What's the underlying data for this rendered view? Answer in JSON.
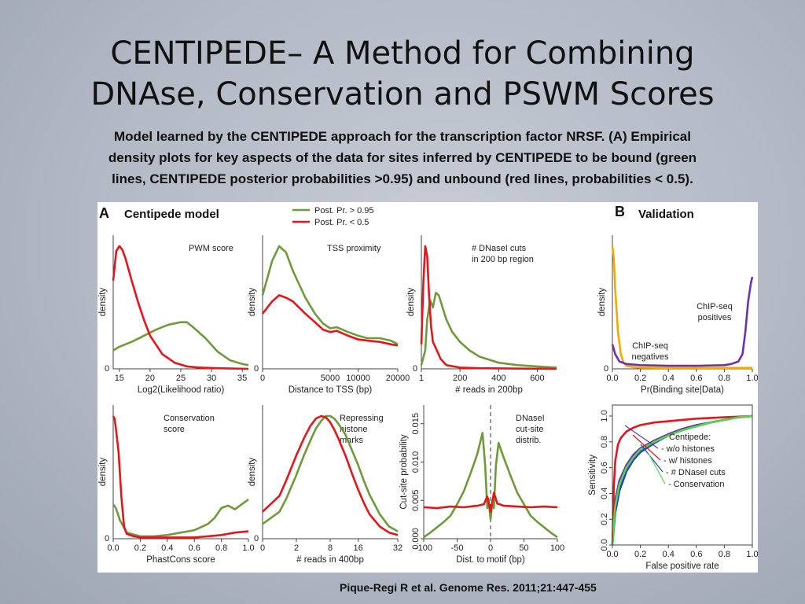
{
  "slide": {
    "title_line1": "CENTIPEDE– A Method for Combining",
    "title_line2": "DNAse, Conservation and PSWM Scores",
    "caption_line1": "Model learned by the CENTIPEDE approach for the transcription factor NRSF. (A) Empirical",
    "caption_line2": "density plots for key aspects of the data for sites inferred by CENTIPEDE to be bound (green",
    "caption_line3": "lines, CENTIPEDE posterior probabilities >0.95) and unbound (red lines, probabilities < 0.5).",
    "citation": "Pique-Regi R et al. Genome Res. 2011;21:447-455"
  },
  "figure": {
    "panel_a_letter": "A",
    "panel_a_title": "Centipede model",
    "panel_b_letter": "B",
    "panel_b_title": "Validation",
    "legend": [
      "Post. Pr. > 0.95",
      "Post. Pr. < 0.5"
    ]
  },
  "colors": {
    "green": "#6e9a3c",
    "red": "#e3161b",
    "purple": "#6b33a8",
    "orange": "#f2a900",
    "blue": "#1f3fcf",
    "lightgreen": "#55d34a",
    "darkred": "#e3161b"
  },
  "chart_data": [
    {
      "id": "pwm",
      "type": "line",
      "note": "PWM score",
      "xlabel": "Log2(Likelihood ratio)",
      "ylabel": "density",
      "xticks": [
        "15",
        "20",
        "25",
        "30",
        "35"
      ],
      "xlim": [
        14,
        36
      ],
      "ylim": [
        0,
        1
      ],
      "series": [
        {
          "name": "Post. Pr. > 0.95",
          "color": "green",
          "x": [
            14,
            15,
            17,
            19,
            21,
            23,
            25,
            26,
            27,
            29,
            31,
            33,
            35,
            36
          ],
          "y": [
            0.15,
            0.18,
            0.22,
            0.27,
            0.32,
            0.36,
            0.38,
            0.38,
            0.34,
            0.25,
            0.14,
            0.07,
            0.04,
            0.03
          ]
        },
        {
          "name": "Post. Pr. < 0.5",
          "color": "red",
          "x": [
            14,
            14.5,
            15,
            15.5,
            16,
            17,
            18,
            19,
            20,
            22,
            24,
            26,
            28,
            31,
            36
          ],
          "y": [
            0.72,
            0.96,
            1.0,
            0.97,
            0.9,
            0.72,
            0.55,
            0.4,
            0.27,
            0.12,
            0.05,
            0.02,
            0.01,
            0.005,
            0
          ]
        }
      ]
    },
    {
      "id": "tss",
      "type": "line",
      "note": "TSS proximity",
      "xlabel": "Distance to TSS (bp)",
      "ylabel": "density",
      "xticks": [
        "0",
        "5000",
        "10000",
        "20000"
      ],
      "xlim": [
        0,
        20000
      ],
      "ylim": [
        0,
        1
      ],
      "xscale": "sqrt",
      "series": [
        {
          "name": "Post. Pr. > 0.95",
          "color": "green",
          "x": [
            0,
            100,
            300,
            600,
            1000,
            2000,
            3000,
            4000,
            5000,
            6000,
            8000,
            10000,
            12000,
            15000,
            18000,
            20000
          ],
          "y": [
            0.6,
            0.88,
            1.0,
            0.95,
            0.8,
            0.58,
            0.45,
            0.37,
            0.33,
            0.34,
            0.3,
            0.27,
            0.25,
            0.25,
            0.23,
            0.2
          ]
        },
        {
          "name": "Post. Pr. < 0.5",
          "color": "red",
          "x": [
            0,
            100,
            300,
            600,
            1000,
            2000,
            3000,
            4000,
            5000,
            6000,
            8000,
            10000,
            12000,
            15000,
            18000,
            20000
          ],
          "y": [
            0.45,
            0.55,
            0.6,
            0.58,
            0.55,
            0.45,
            0.38,
            0.32,
            0.3,
            0.31,
            0.27,
            0.24,
            0.23,
            0.22,
            0.2,
            0.19
          ]
        }
      ]
    },
    {
      "id": "dnase",
      "type": "line",
      "note": "# DNaseI cuts in 200 bp region",
      "xlabel": "# reads in 200bp",
      "ylabel": "density",
      "xticks": [
        "1",
        "200",
        "400",
        "600"
      ],
      "xlim": [
        0,
        700
      ],
      "ylim": [
        0,
        1
      ],
      "series": [
        {
          "name": "Post. Pr. > 0.95",
          "color": "green",
          "x": [
            0,
            20,
            30,
            45,
            60,
            75,
            90,
            110,
            130,
            160,
            200,
            250,
            300,
            400,
            500,
            600,
            700
          ],
          "y": [
            0.03,
            0.15,
            0.4,
            0.56,
            0.5,
            0.62,
            0.6,
            0.5,
            0.4,
            0.3,
            0.22,
            0.15,
            0.1,
            0.05,
            0.03,
            0.02,
            0.01
          ]
        },
        {
          "name": "Post. Pr. < 0.5",
          "color": "red",
          "x": [
            0,
            10,
            20,
            30,
            40,
            50,
            60,
            80,
            100,
            130,
            200,
            300,
            700
          ],
          "y": [
            0.2,
            0.7,
            1.0,
            0.92,
            0.6,
            0.35,
            0.22,
            0.15,
            0.08,
            0.03,
            0.01,
            0.005,
            0
          ]
        }
      ]
    },
    {
      "id": "cons",
      "type": "line",
      "note": "Conservation score",
      "xlabel": "PhastCons score",
      "ylabel": "density",
      "xticks": [
        "0.0",
        "0.2",
        "0.4",
        "0.6",
        "0.8",
        "1.0"
      ],
      "xlim": [
        0,
        1
      ],
      "ylim": [
        0,
        1
      ],
      "series": [
        {
          "name": "Post. Pr. > 0.95",
          "color": "green",
          "x": [
            0,
            0.02,
            0.05,
            0.1,
            0.2,
            0.3,
            0.4,
            0.5,
            0.6,
            0.7,
            0.75,
            0.8,
            0.85,
            0.9,
            0.95,
            1.0
          ],
          "y": [
            0.28,
            0.25,
            0.15,
            0.05,
            0.02,
            0.02,
            0.03,
            0.05,
            0.07,
            0.12,
            0.17,
            0.25,
            0.27,
            0.24,
            0.28,
            0.32
          ]
        },
        {
          "name": "Post. Pr. < 0.5",
          "color": "red",
          "x": [
            0,
            0.01,
            0.02,
            0.04,
            0.06,
            0.08,
            0.1,
            0.15,
            0.2,
            0.3,
            0.4,
            0.5,
            0.6,
            0.7,
            0.8,
            0.9,
            1.0
          ],
          "y": [
            1.0,
            0.98,
            0.9,
            0.7,
            0.35,
            0.1,
            0.04,
            0.02,
            0.01,
            0.01,
            0.01,
            0.01,
            0.01,
            0.02,
            0.03,
            0.05,
            0.06
          ]
        }
      ]
    },
    {
      "id": "hist",
      "type": "line",
      "note": "Repressing histone marks",
      "xlabel": "# reads in 400bp",
      "ylabel": "density",
      "xticks": [
        "0",
        "2",
        "8",
        "16",
        "32"
      ],
      "xlim": [
        0,
        32
      ],
      "ylim": [
        0,
        1
      ],
      "xscale": "sqrt",
      "series": [
        {
          "name": "Post. Pr. > 0.95",
          "color": "green",
          "x": [
            0,
            0.5,
            1,
            2,
            3,
            4,
            5,
            6,
            7,
            8,
            9,
            10,
            12,
            14,
            16,
            18,
            20,
            24,
            28,
            32
          ],
          "y": [
            0.12,
            0.22,
            0.33,
            0.52,
            0.68,
            0.8,
            0.9,
            0.96,
            1.0,
            1.0,
            0.98,
            0.94,
            0.85,
            0.72,
            0.6,
            0.47,
            0.36,
            0.2,
            0.1,
            0.06
          ]
        },
        {
          "name": "Post. Pr. < 0.5",
          "color": "red",
          "x": [
            0,
            0.5,
            1,
            2,
            3,
            4,
            5,
            6,
            7,
            8,
            9,
            10,
            12,
            14,
            16,
            18,
            20,
            24,
            28,
            32
          ],
          "y": [
            0.22,
            0.35,
            0.48,
            0.68,
            0.82,
            0.92,
            0.98,
            1.0,
            0.99,
            0.95,
            0.89,
            0.82,
            0.68,
            0.53,
            0.4,
            0.29,
            0.2,
            0.1,
            0.05,
            0.03
          ]
        }
      ]
    },
    {
      "id": "cut",
      "type": "line",
      "note": "DNaseI cut-site distrib.",
      "xlabel": "Dist. to motif (bp)",
      "ylabel": "Cut-site probability",
      "xticks": [
        "-100",
        "-50",
        "0",
        "50",
        "100"
      ],
      "xlim": [
        -100,
        100
      ],
      "ylim": [
        0,
        0.016
      ],
      "yticks": [
        "0.000",
        "0.005",
        "0.010",
        "0.015"
      ],
      "vline": 0,
      "series": [
        {
          "name": "Post. Pr. > 0.95",
          "color": "green",
          "x": [
            -100,
            -90,
            -80,
            -70,
            -60,
            -50,
            -40,
            -30,
            -20,
            -12,
            -8,
            -5,
            -3,
            0,
            3,
            5,
            8,
            12,
            20,
            30,
            40,
            50,
            60,
            70,
            80,
            90,
            100
          ],
          "y": [
            0.0002,
            0.0008,
            0.0015,
            0.0022,
            0.003,
            0.0045,
            0.0062,
            0.0085,
            0.011,
            0.0138,
            0.0095,
            0.004,
            0.0052,
            0.0025,
            0.005,
            0.004,
            0.0095,
            0.0125,
            0.0105,
            0.0082,
            0.006,
            0.0045,
            0.003,
            0.0022,
            0.0015,
            0.0008,
            0.0002
          ]
        },
        {
          "name": "Post. Pr. < 0.5",
          "color": "red",
          "x": [
            -100,
            -80,
            -60,
            -40,
            -20,
            -10,
            -5,
            0,
            5,
            10,
            20,
            40,
            60,
            80,
            100
          ],
          "y": [
            0.0041,
            0.004,
            0.0042,
            0.0041,
            0.0043,
            0.0045,
            0.0055,
            0.0035,
            0.006,
            0.0046,
            0.0043,
            0.0042,
            0.0041,
            0.0042,
            0.0041
          ]
        }
      ]
    },
    {
      "id": "valid_density",
      "type": "line",
      "xlabel": "Pr(Binding site|Data)",
      "ylabel": "density",
      "xticks": [
        "0.0",
        "0.2",
        "0.4",
        "0.6",
        "0.8",
        "1.0"
      ],
      "xlim": [
        0,
        1
      ],
      "ylim": [
        0,
        1
      ],
      "labels": {
        "positives": "ChIP-seq positives",
        "negatives": "ChIP-seq negatives"
      },
      "series": [
        {
          "name": "ChIP-seq negatives",
          "color": "orange",
          "x": [
            0,
            0.01,
            0.02,
            0.04,
            0.06,
            0.08,
            0.1,
            0.15,
            0.2,
            0.4,
            0.6,
            0.8,
            1.0
          ],
          "y": [
            1.0,
            0.9,
            0.65,
            0.3,
            0.12,
            0.05,
            0.025,
            0.015,
            0.01,
            0.008,
            0.008,
            0.008,
            0.008
          ]
        },
        {
          "name": "ChIP-seq positives",
          "color": "purple",
          "x": [
            0,
            0.02,
            0.05,
            0.1,
            0.2,
            0.4,
            0.6,
            0.8,
            0.85,
            0.9,
            0.93,
            0.95,
            0.97,
            0.99,
            1.0
          ],
          "y": [
            0.2,
            0.12,
            0.06,
            0.04,
            0.03,
            0.025,
            0.025,
            0.03,
            0.04,
            0.06,
            0.12,
            0.3,
            0.55,
            0.7,
            0.75
          ]
        }
      ]
    },
    {
      "id": "roc",
      "type": "line",
      "xlabel": "False positive rate",
      "ylabel": "Sensitivity",
      "xticks": [
        "0.0",
        "0.2",
        "0.4",
        "0.6",
        "0.8",
        "1.0"
      ],
      "yticks": [
        "0.0",
        "0.2",
        "0.4",
        "0.6",
        "0.8",
        "1.0"
      ],
      "xlim": [
        0,
        1
      ],
      "ylim": [
        0,
        1
      ],
      "legend_title": "Centipede:",
      "series": [
        {
          "name": "- w/o histones",
          "color": "purple",
          "x": [
            0,
            0.02,
            0.05,
            0.1,
            0.15,
            0.2,
            0.3,
            0.4,
            0.5,
            0.6,
            0.7,
            0.8,
            0.9,
            1.0
          ],
          "y": [
            0,
            0.35,
            0.5,
            0.62,
            0.7,
            0.75,
            0.81,
            0.86,
            0.9,
            0.93,
            0.95,
            0.97,
            0.99,
            1.0
          ]
        },
        {
          "name": "- w/ histones",
          "color": "red",
          "x": [
            0,
            0.01,
            0.02,
            0.04,
            0.06,
            0.1,
            0.15,
            0.2,
            0.3,
            0.4,
            0.6,
            0.8,
            1.0
          ],
          "y": [
            0,
            0.45,
            0.65,
            0.78,
            0.83,
            0.88,
            0.91,
            0.93,
            0.95,
            0.96,
            0.98,
            0.99,
            1.0
          ]
        },
        {
          "name": "- # DNaseI cuts",
          "color": "blue",
          "x": [
            0,
            0.02,
            0.05,
            0.1,
            0.15,
            0.2,
            0.3,
            0.4,
            0.5,
            0.6,
            0.7,
            0.8,
            0.9,
            1.0
          ],
          "y": [
            0,
            0.25,
            0.42,
            0.57,
            0.66,
            0.72,
            0.79,
            0.85,
            0.89,
            0.92,
            0.95,
            0.97,
            0.99,
            1.0
          ]
        },
        {
          "name": "- Conservation",
          "color": "lightgreen",
          "x": [
            0,
            0.02,
            0.05,
            0.1,
            0.15,
            0.2,
            0.3,
            0.4,
            0.5,
            0.6,
            0.7,
            0.8,
            0.9,
            1.0
          ],
          "y": [
            0,
            0.3,
            0.47,
            0.6,
            0.68,
            0.74,
            0.8,
            0.85,
            0.89,
            0.92,
            0.95,
            0.97,
            0.99,
            1.0
          ]
        }
      ]
    }
  ]
}
